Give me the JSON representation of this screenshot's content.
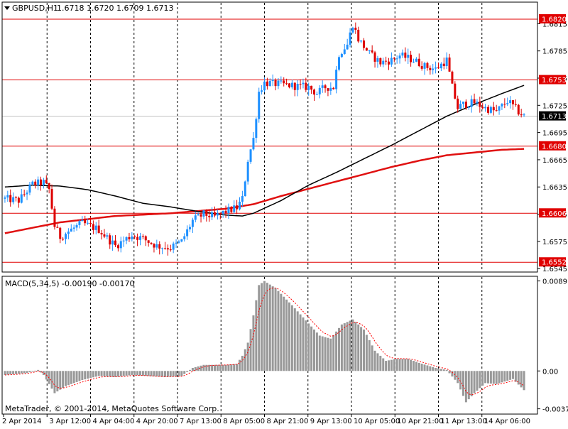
{
  "header": {
    "symbol_label": "GBPUSD,H1",
    "ohlc_label": "1.6718 1.6720 1.6709 1.6713"
  },
  "macd_label": "MACD(5,34,5) -0.00190 -0.00170",
  "copyright": "MetaTrader, © 2001-2014, MetaQuotes Software Corp.",
  "colors": {
    "background": "#ffffff",
    "foreground": "#000000",
    "bull_candle": "#1e90ff",
    "bear_candle": "#dd0000",
    "level_line": "#e00000",
    "ma_fast": "#000000",
    "ma_slow": "#e01010",
    "macd_hist": "#999999",
    "macd_signal": "#ff0000",
    "grid": "#000000"
  },
  "chart_data": {
    "type": "candlestick",
    "symbol": "GBPUSD",
    "timeframe": "H1",
    "price_axis": {
      "ticks": [
        "1.6815",
        "1.6785",
        "1.6755",
        "1.6725",
        "1.6695",
        "1.6665",
        "1.6635",
        "1.6605",
        "1.6575",
        "1.6545"
      ],
      "ylim": [
        1.6542,
        1.6838
      ]
    },
    "time_axis": {
      "labels": [
        "2 Apr 2014",
        "3 Apr 12:00",
        "4 Apr 04:00",
        "4 Apr 20:00",
        "7 Apr 13:00",
        "8 Apr 05:00",
        "8 Apr 21:00",
        "9 Apr 13:00",
        "10 Apr 05:00",
        "10 Apr 21:00",
        "11 Apr 13:00",
        "14 Apr 06:00"
      ]
    },
    "levels": [
      {
        "value": 1.682,
        "label": "1.6820"
      },
      {
        "value": 1.6753,
        "label": "1.6753"
      },
      {
        "value": 1.668,
        "label": "1.6680"
      },
      {
        "value": 1.6606,
        "label": "1.6606"
      },
      {
        "value": 1.6552,
        "label": "1.6552"
      }
    ],
    "current_price": {
      "value": 1.6713,
      "label": "1.6713"
    },
    "price_path": [
      [
        0,
        1.6622
      ],
      [
        5,
        1.662
      ],
      [
        10,
        1.6638
      ],
      [
        14,
        1.664
      ],
      [
        16,
        1.6632
      ],
      [
        18,
        1.6592
      ],
      [
        20,
        1.658
      ],
      [
        24,
        1.6588
      ],
      [
        28,
        1.6595
      ],
      [
        34,
        1.6588
      ],
      [
        40,
        1.657
      ],
      [
        46,
        1.6582
      ],
      [
        50,
        1.6578
      ],
      [
        55,
        1.657
      ],
      [
        60,
        1.6568
      ],
      [
        64,
        1.6575
      ],
      [
        68,
        1.6598
      ],
      [
        72,
        1.6605
      ],
      [
        76,
        1.6602
      ],
      [
        80,
        1.6608
      ],
      [
        84,
        1.6612
      ],
      [
        86,
        1.6622
      ],
      [
        88,
        1.6665
      ],
      [
        90,
        1.6688
      ],
      [
        92,
        1.674
      ],
      [
        94,
        1.675
      ],
      [
        100,
        1.6748
      ],
      [
        106,
        1.6746
      ],
      [
        110,
        1.6745
      ],
      [
        113,
        1.6738
      ],
      [
        116,
        1.6745
      ],
      [
        119,
        1.6745
      ],
      [
        121,
        1.6782
      ],
      [
        124,
        1.6792
      ],
      [
        126,
        1.6815
      ],
      [
        128,
        1.6798
      ],
      [
        132,
        1.6782
      ],
      [
        136,
        1.6772
      ],
      [
        140,
        1.6775
      ],
      [
        143,
        1.678
      ],
      [
        148,
        1.6775
      ],
      [
        152,
        1.6768
      ],
      [
        156,
        1.6765
      ],
      [
        160,
        1.6775
      ],
      [
        162,
        1.6745
      ],
      [
        164,
        1.6722
      ],
      [
        166,
        1.6726
      ],
      [
        170,
        1.6728
      ],
      [
        174,
        1.6722
      ],
      [
        178,
        1.6718
      ],
      [
        182,
        1.673
      ],
      [
        186,
        1.6718
      ],
      [
        188,
        1.6713
      ]
    ],
    "ma_fast_path": [
      [
        0,
        1.6635
      ],
      [
        10,
        1.6637
      ],
      [
        20,
        1.6636
      ],
      [
        30,
        1.6632
      ],
      [
        40,
        1.6625
      ],
      [
        50,
        1.6617
      ],
      [
        60,
        1.6613
      ],
      [
        70,
        1.6608
      ],
      [
        80,
        1.6604
      ],
      [
        86,
        1.6603
      ],
      [
        90,
        1.6606
      ],
      [
        100,
        1.662
      ],
      [
        110,
        1.6637
      ],
      [
        120,
        1.6651
      ],
      [
        130,
        1.6666
      ],
      [
        140,
        1.6681
      ],
      [
        150,
        1.6697
      ],
      [
        160,
        1.6713
      ],
      [
        170,
        1.6726
      ],
      [
        180,
        1.6738
      ],
      [
        188,
        1.6747
      ]
    ],
    "ma_slow_path": [
      [
        0,
        1.6584
      ],
      [
        20,
        1.6596
      ],
      [
        40,
        1.6603
      ],
      [
        60,
        1.6606
      ],
      [
        80,
        1.6611
      ],
      [
        90,
        1.6616
      ],
      [
        100,
        1.6625
      ],
      [
        110,
        1.6633
      ],
      [
        120,
        1.6641
      ],
      [
        130,
        1.6649
      ],
      [
        140,
        1.6657
      ],
      [
        150,
        1.6664
      ],
      [
        160,
        1.667
      ],
      [
        170,
        1.6673
      ],
      [
        180,
        1.6676
      ],
      [
        188,
        1.6677
      ]
    ],
    "macd": {
      "ticks": [
        "0.00891",
        "0.00",
        "-0.00375"
      ],
      "ylim": [
        -0.0042,
        0.0093
      ],
      "hist_path": [
        [
          0,
          -0.0004
        ],
        [
          8,
          -0.0002
        ],
        [
          12,
          0.0001
        ],
        [
          14,
          -0.0004
        ],
        [
          18,
          -0.0022
        ],
        [
          22,
          -0.0015
        ],
        [
          28,
          -0.0009
        ],
        [
          34,
          -0.0005
        ],
        [
          40,
          -0.0006
        ],
        [
          46,
          -0.0004
        ],
        [
          52,
          -0.0005
        ],
        [
          58,
          -0.0006
        ],
        [
          64,
          -0.0005
        ],
        [
          68,
          0.0003
        ],
        [
          72,
          0.0006
        ],
        [
          80,
          0.0006
        ],
        [
          84,
          0.0007
        ],
        [
          86,
          0.0015
        ],
        [
          88,
          0.0028
        ],
        [
          90,
          0.0055
        ],
        [
          92,
          0.0085
        ],
        [
          94,
          0.0089
        ],
        [
          98,
          0.0082
        ],
        [
          104,
          0.0065
        ],
        [
          110,
          0.0047
        ],
        [
          114,
          0.0035
        ],
        [
          118,
          0.0032
        ],
        [
          122,
          0.0046
        ],
        [
          126,
          0.0051
        ],
        [
          130,
          0.0041
        ],
        [
          134,
          0.002
        ],
        [
          138,
          0.001
        ],
        [
          142,
          0.0012
        ],
        [
          146,
          0.0012
        ],
        [
          150,
          0.0008
        ],
        [
          156,
          0.0003
        ],
        [
          160,
          0.0001
        ],
        [
          164,
          -0.0012
        ],
        [
          167,
          -0.0031
        ],
        [
          170,
          -0.0022
        ],
        [
          174,
          -0.0012
        ],
        [
          178,
          -0.0013
        ],
        [
          184,
          -0.0008
        ],
        [
          188,
          -0.0019
        ]
      ]
    }
  }
}
